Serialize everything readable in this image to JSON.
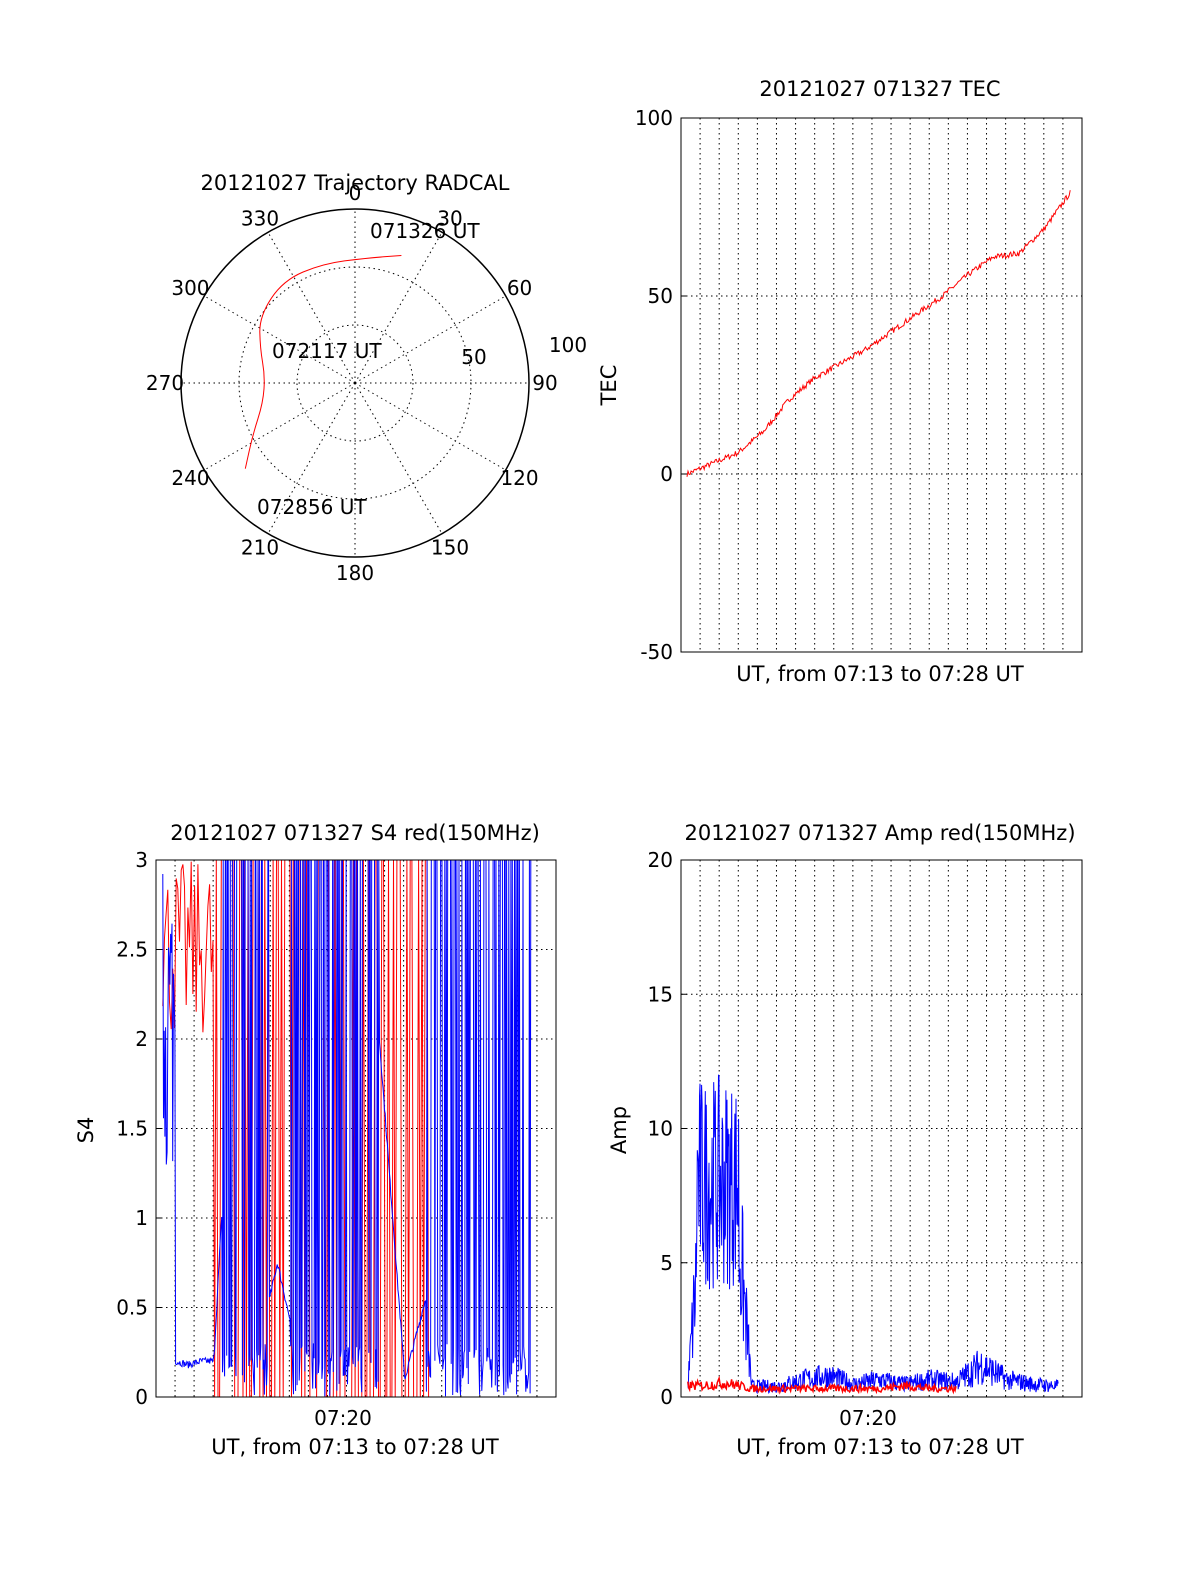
{
  "colors": {
    "red": "#ff0000",
    "blue": "#0000ff",
    "axis": "#000000"
  },
  "chart_data": [
    {
      "type": "polar",
      "title": "20121027 Trajectory RADCAL",
      "angle_labels": [
        "0",
        "30",
        "60",
        "90",
        "120",
        "150",
        "180",
        "210",
        "240",
        "270",
        "300",
        "330"
      ],
      "radial_labels": [
        "50",
        "100"
      ],
      "radius_range": [
        0,
        100
      ],
      "grid": true,
      "annotations": {
        "start": "071326 UT",
        "mid": "072117 UT",
        "end": "072856 UT"
      },
      "series": [
        {
          "color": "red",
          "points": [
            {
              "az": 20,
              "r": 78
            },
            {
              "az": 5,
              "r": 72
            },
            {
              "az": 345,
              "r": 71
            },
            {
              "az": 325,
              "r": 72
            },
            {
              "az": 305,
              "r": 67
            },
            {
              "az": 290,
              "r": 58
            },
            {
              "az": 275,
              "r": 52
            },
            {
              "az": 258,
              "r": 54
            },
            {
              "az": 243,
              "r": 66
            },
            {
              "az": 232,
              "r": 80
            }
          ]
        }
      ]
    },
    {
      "type": "line",
      "title": "20121027 071327 TEC",
      "xlabel": "UT, from 07:13 to 07:28 UT",
      "ylabel": "TEC",
      "ylim": [
        -50,
        100
      ],
      "yticks": [
        "-50",
        "0",
        "50",
        "100"
      ],
      "grid": true,
      "series": [
        {
          "color": "red",
          "x": [
            "07:13",
            "07:14",
            "07:15",
            "07:16",
            "07:17",
            "07:18",
            "07:19",
            "07:20",
            "07:21",
            "07:22",
            "07:23",
            "07:24",
            "07:25",
            "07:26",
            "07:27",
            "07:28"
          ],
          "values": [
            0,
            3,
            6,
            12,
            21,
            27,
            31,
            35,
            40,
            45,
            50,
            56,
            61,
            62,
            69,
            79
          ]
        }
      ]
    },
    {
      "type": "line",
      "title": "20121027 071327 S4 red(150MHz)",
      "xlabel": "UT, from 07:13 to 07:28 UT",
      "ylabel": "S4",
      "ylim": [
        0,
        3
      ],
      "yticks": [
        "0",
        "0.5",
        "1",
        "1.5",
        "2",
        "2.5",
        "3"
      ],
      "xticks": [
        "07:20"
      ],
      "grid": true,
      "series": [
        {
          "color": "blue",
          "x": [
            "07:13:30",
            "07:14",
            "07:14:30",
            "07:15",
            "07:15:30",
            "07:16",
            "07:17",
            "07:18",
            "07:19",
            "07:20",
            "07:21",
            "07:22",
            "07:23",
            "07:24",
            "07:25",
            "07:26",
            "07:27",
            "07:28"
          ],
          "values": [
            2.5,
            0.2,
            0.18,
            0.2,
            0.2,
            1.5,
            0.1,
            0.75,
            0.1,
            0.4,
            0.1,
            2.0,
            0.1,
            0.65,
            1.6,
            2.5,
            1.5,
            2.0
          ]
        },
        {
          "color": "red",
          "x": [
            "07:13:30",
            "07:14",
            "07:15",
            "07:16",
            "07:18",
            "07:19",
            "07:20",
            "07:21",
            "07:22",
            "07:23",
            "07:24"
          ],
          "values": [
            3.0,
            2.6,
            2.7,
            0.0,
            3.0,
            0.0,
            3.0,
            0.0,
            3.0,
            0.0,
            3.0
          ]
        }
      ]
    },
    {
      "type": "line",
      "title": "20121027 071327 Amp red(150MHz)",
      "xlabel": "UT, from 07:13 to 07:28 UT",
      "ylabel": "Amp",
      "ylim": [
        0,
        20
      ],
      "yticks": [
        "0",
        "5",
        "10",
        "15",
        "20"
      ],
      "xticks": [
        "07:20"
      ],
      "grid": true,
      "series": [
        {
          "color": "blue",
          "x": [
            "07:13:30",
            "07:14",
            "07:14:30",
            "07:15",
            "07:15:30",
            "07:16",
            "07:17",
            "07:18",
            "07:19",
            "07:20",
            "07:21",
            "07:22",
            "07:23",
            "07:24",
            "07:25",
            "07:26",
            "07:27",
            "07:28"
          ],
          "values": [
            0.5,
            8.0,
            10.5,
            9.0,
            7.5,
            0.5,
            0.5,
            0.8,
            1.0,
            0.6,
            0.8,
            0.6,
            0.8,
            0.7,
            1.5,
            0.8,
            0.6,
            0.5
          ]
        },
        {
          "color": "red",
          "x": [
            "07:13:30",
            "07:14",
            "07:15",
            "07:16",
            "07:17",
            "07:18",
            "07:19",
            "07:20",
            "07:21",
            "07:22",
            "07:23",
            "07:24"
          ],
          "values": [
            0.4,
            0.4,
            0.5,
            0.3,
            0.3,
            0.3,
            0.3,
            0.3,
            0.3,
            0.4,
            0.3,
            0.3
          ]
        }
      ]
    }
  ]
}
